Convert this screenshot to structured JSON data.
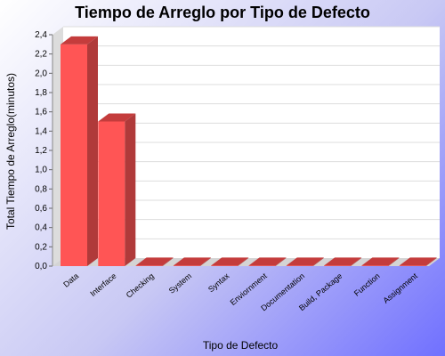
{
  "chart_data": {
    "type": "bar",
    "title": "Tiempo de Arreglo por Tipo de Defecto",
    "xlabel": "Tipo de Defecto",
    "ylabel": "Total Tiempo de Arreglo(minutos)",
    "categories": [
      "Data",
      "Interface",
      "Checking",
      "System",
      "Syntax",
      "Enviornment",
      "Documentation",
      "Build, Package",
      "Function",
      "Assignment"
    ],
    "values": [
      2.3,
      1.5,
      0,
      0,
      0,
      0,
      0,
      0,
      0,
      0
    ],
    "ylim": [
      0,
      2.4
    ],
    "yticks": [
      "0,0",
      "0,2",
      "0,4",
      "0,6",
      "0,8",
      "1,0",
      "1,2",
      "1,4",
      "1,6",
      "1,8",
      "2,0",
      "2,2",
      "2,4"
    ],
    "grid": true,
    "legend": "none",
    "colors": {
      "bar_front": "#ff5555",
      "bar_top": "#c43c3c",
      "bar_side": "#b03a3a",
      "plot_bg": "#ffffff",
      "grid": "#dddddd"
    }
  }
}
